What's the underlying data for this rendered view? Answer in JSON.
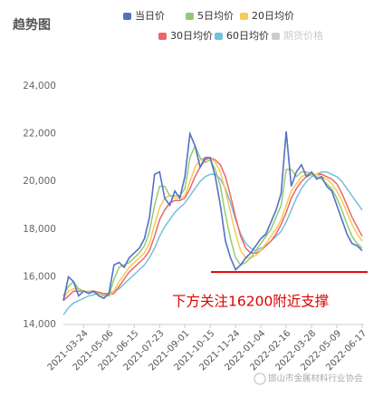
{
  "chart_data": {
    "type": "line",
    "title": "趋势图",
    "categories": [
      null,
      null,
      null,
      null,
      "2021-03-24",
      null,
      null,
      null,
      null,
      "2021-05-06",
      null,
      null,
      null,
      null,
      "2021-06-15",
      null,
      null,
      null,
      null,
      "2021-07-23",
      null,
      null,
      null,
      null,
      "2021-09-01",
      null,
      null,
      null,
      null,
      "2021-10-15",
      null,
      null,
      null,
      null,
      "2021-11-24",
      null,
      null,
      null,
      null,
      "2022-01-04",
      null,
      null,
      null,
      null,
      "2022-02-16",
      null,
      null,
      null,
      null,
      "2022-03-28",
      null,
      null,
      null,
      null,
      "2022-05-09",
      null,
      null,
      null,
      null,
      "2022-06-17"
    ],
    "series": [
      {
        "name": "当日价",
        "color": "#5470c6",
        "values": [
          15000,
          16000,
          15800,
          15200,
          15400,
          15300,
          15400,
          15200,
          15100,
          15300,
          16500,
          16600,
          16400,
          16800,
          17000,
          17200,
          17600,
          18500,
          20300,
          20400,
          19300,
          19000,
          19600,
          19300,
          20200,
          22000,
          21500,
          20600,
          21000,
          21000,
          20200,
          19000,
          17500,
          16800,
          16300,
          16500,
          16800,
          17000,
          17300,
          17600,
          17800,
          18300,
          18800,
          19500,
          22100,
          19800,
          20400,
          20700,
          20200,
          20400,
          20100,
          20200,
          19800,
          19600,
          19000,
          18400,
          17800,
          17400,
          17300,
          17100
        ]
      },
      {
        "name": "5日均价",
        "color": "#91cc75",
        "values": [
          15200,
          15600,
          15800,
          15500,
          15400,
          15350,
          15350,
          15300,
          15200,
          15200,
          15900,
          16400,
          16500,
          16600,
          16800,
          17000,
          17300,
          17900,
          19000,
          19800,
          19800,
          19400,
          19400,
          19400,
          19700,
          21000,
          21500,
          21000,
          20800,
          20900,
          20500,
          19800,
          18600,
          17600,
          16800,
          16500,
          16600,
          16800,
          17100,
          17400,
          17700,
          18000,
          18500,
          19000,
          20500,
          20500,
          20200,
          20400,
          20400,
          20300,
          20200,
          20100,
          19900,
          19700,
          19300,
          18800,
          18200,
          17700,
          17400,
          17200
        ]
      },
      {
        "name": "20日均价",
        "color": "#fac858",
        "values": [
          15100,
          15400,
          15500,
          15500,
          15400,
          15400,
          15350,
          15300,
          15250,
          15200,
          15400,
          15800,
          16100,
          16400,
          16600,
          16800,
          17000,
          17400,
          18200,
          18900,
          19300,
          19400,
          19300,
          19300,
          19400,
          20000,
          20600,
          20900,
          21000,
          21000,
          20800,
          20400,
          19600,
          18700,
          17800,
          17100,
          16800,
          16800,
          16900,
          17100,
          17400,
          17700,
          18000,
          18400,
          19000,
          19600,
          19900,
          20200,
          20300,
          20300,
          20300,
          20200,
          20100,
          19900,
          19600,
          19200,
          18700,
          18200,
          17800,
          17500
        ]
      },
      {
        "name": "30日均价",
        "color": "#ee6666",
        "values": [
          15000,
          15200,
          15400,
          15400,
          15400,
          15400,
          15400,
          15350,
          15300,
          15250,
          15300,
          15600,
          15900,
          16200,
          16400,
          16600,
          16800,
          17100,
          17700,
          18400,
          18800,
          19100,
          19200,
          19200,
          19300,
          19700,
          20200,
          20600,
          20900,
          21000,
          20900,
          20700,
          20200,
          19400,
          18500,
          17700,
          17200,
          17000,
          17000,
          17100,
          17300,
          17500,
          17800,
          18200,
          18700,
          19300,
          19700,
          20000,
          20200,
          20300,
          20300,
          20300,
          20200,
          20100,
          19900,
          19500,
          19000,
          18500,
          18100,
          17700
        ]
      },
      {
        "name": "60日均价",
        "color": "#73c0de",
        "values": [
          14400,
          14700,
          14900,
          15000,
          15100,
          15200,
          15250,
          15300,
          15300,
          15300,
          15400,
          15500,
          15700,
          15900,
          16100,
          16300,
          16500,
          16800,
          17200,
          17700,
          18100,
          18400,
          18700,
          18900,
          19100,
          19400,
          19700,
          20000,
          20200,
          20300,
          20300,
          20100,
          19700,
          19100,
          18400,
          17800,
          17400,
          17200,
          17100,
          17200,
          17300,
          17500,
          17700,
          17900,
          18300,
          18800,
          19300,
          19700,
          20000,
          20200,
          20300,
          20400,
          20400,
          20300,
          20200,
          20000,
          19700,
          19400,
          19100,
          18800
        ]
      }
    ],
    "legend_inactive": {
      "name": "期货价格",
      "color": "#cccccc"
    },
    "ylim": [
      14000,
      24000
    ],
    "yticks": [
      {
        "value": 14000,
        "label": "14,000"
      },
      {
        "value": 16000,
        "label": "16,000"
      },
      {
        "value": 18000,
        "label": "18,000"
      },
      {
        "value": 20000,
        "label": "20,000"
      },
      {
        "value": 22000,
        "label": "22,000"
      },
      {
        "value": 24000,
        "label": "24,000"
      }
    ],
    "annotation": {
      "text": "下方关注16200附近支撑",
      "value": 16200,
      "color": "#e00000"
    },
    "watermark": "邯山市金属材料行业协会"
  }
}
